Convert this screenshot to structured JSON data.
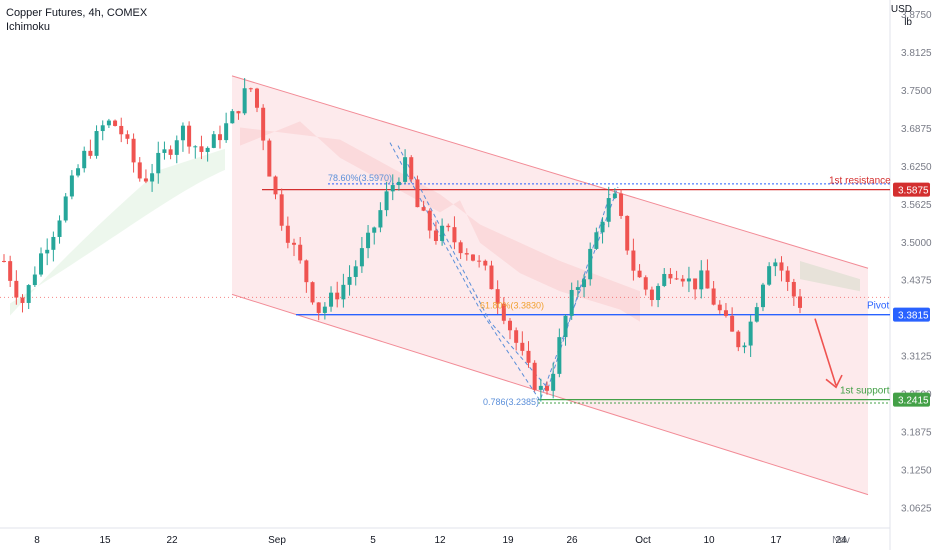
{
  "header": {
    "title": "Copper Futures, 4h, COMEX",
    "indicator": "Ichimoku"
  },
  "axis_units": {
    "currency": "USD",
    "unit": "lb"
  },
  "colors": {
    "bull": "#26a69a",
    "bear": "#ef5350",
    "channel": "#f28b96",
    "resistance": "#d32f2f",
    "pivot": "#2962ff",
    "support": "#43a047",
    "fib": "#5b8fd9",
    "fib_orange": "#f0a030"
  },
  "chart_data": {
    "type": "candlestick",
    "title": "Copper Futures, 4h, COMEX",
    "ylim": [
      3.03,
      3.9
    ],
    "y_ticks": [
      "3.8750",
      "3.8125",
      "3.7500",
      "3.6875",
      "3.6250",
      "3.5625",
      "3.5000",
      "3.4375",
      "3.3125",
      "3.2500",
      "3.1875",
      "3.1250",
      "3.0625"
    ],
    "x_ticks": [
      "8",
      "15",
      "22",
      "Sep",
      "5",
      "12",
      "19",
      "26",
      "Oct",
      "10",
      "17",
      "24",
      "Nov"
    ],
    "levels": [
      {
        "name": "1st resistance",
        "value": 3.5875,
        "label": "3.5875"
      },
      {
        "name": "Pivot",
        "value": 3.3815,
        "label": "3.3815"
      },
      {
        "name": "1st support",
        "value": 3.2415,
        "label": "3.2415"
      }
    ],
    "fib_annotations": [
      "78.60%(3.5970)",
      "61.80%(3.3830)",
      "0.786(3.2385)"
    ],
    "close_path": [
      3.47,
      3.43,
      3.4,
      3.45,
      3.49,
      3.52,
      3.56,
      3.6,
      3.64,
      3.66,
      3.69,
      3.7,
      3.68,
      3.64,
      3.6,
      3.62,
      3.64,
      3.66,
      3.69,
      3.67,
      3.65,
      3.66,
      3.68,
      3.7,
      3.73,
      3.76,
      3.71,
      3.62,
      3.55,
      3.51,
      3.47,
      3.43,
      3.39,
      3.4,
      3.42,
      3.44,
      3.47,
      3.5,
      3.54,
      3.58,
      3.61,
      3.63,
      3.56,
      3.53,
      3.51,
      3.52,
      3.5,
      3.49,
      3.47,
      3.45,
      3.42,
      3.38,
      3.34,
      3.3,
      3.27,
      3.25,
      3.3,
      3.37,
      3.42,
      3.45,
      3.5,
      3.55,
      3.58,
      3.52,
      3.46,
      3.43,
      3.41,
      3.44,
      3.46,
      3.45,
      3.43,
      3.44,
      3.41,
      3.38,
      3.35,
      3.33,
      3.37,
      3.43,
      3.48,
      3.46,
      3.42,
      3.4
    ]
  }
}
